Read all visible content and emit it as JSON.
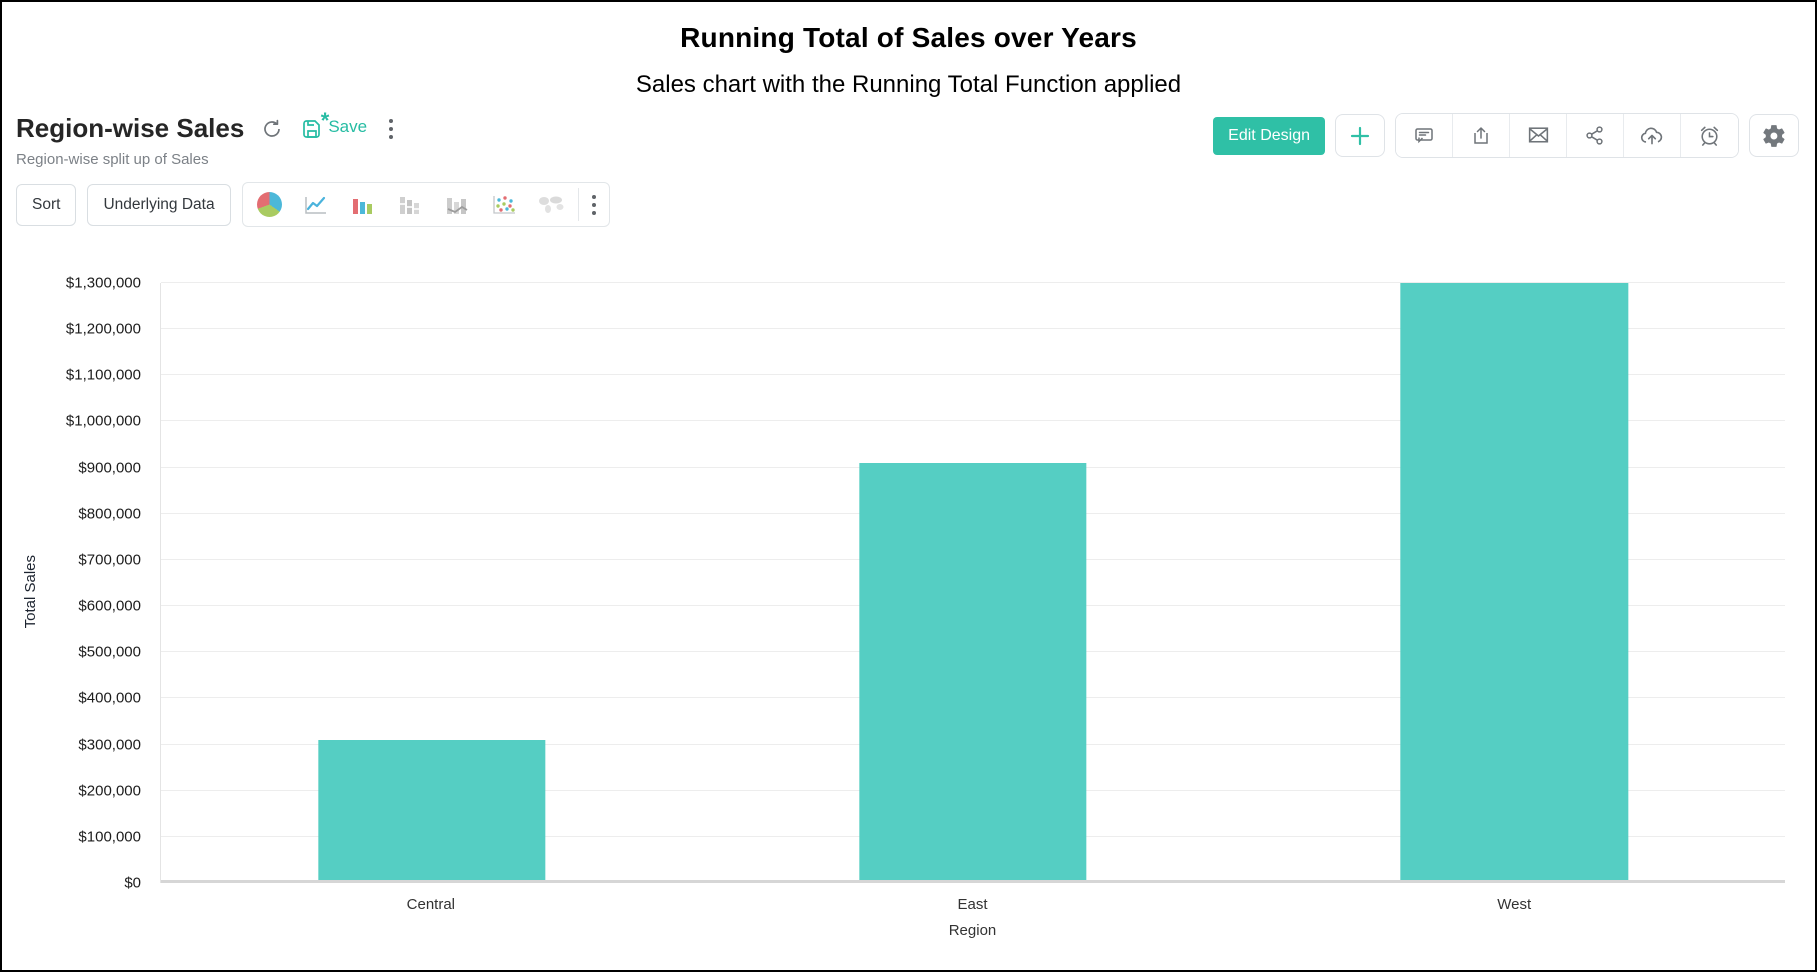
{
  "report": {
    "title": "Region-wise Sales",
    "subtitle": "Region-wise split up of Sales",
    "save_label": "Save",
    "edit_design_label": "Edit Design"
  },
  "toolbar": {
    "sort_label": "Sort",
    "underlying_data_label": "Underlying Data",
    "chart_types": [
      "pie",
      "line",
      "bar",
      "stacked-bar",
      "bar-line",
      "scatter",
      "map"
    ]
  },
  "icons": {
    "refresh": "circular-arrow",
    "save": "floppy-with-asterisk",
    "more": "vertical-three-dots",
    "plus": "plus-sign",
    "comment": "speech-bubble",
    "export": "box-up-arrow",
    "email": "envelope",
    "share": "share-nodes",
    "cloud_upload": "cloud-up-arrow",
    "alarm": "alarm-clock",
    "settings": "gear"
  },
  "colors": {
    "bar": "#55cec3",
    "accent_teal": "#2fc0a6",
    "save_teal": "#26bca3",
    "gridline": "#ededed",
    "baseline": "#d6d6d6",
    "icon_gray": "#6f7479"
  },
  "chart_data": {
    "type": "bar",
    "title": "Running Total of Sales over Years",
    "subtitle": "Sales chart with the Running Total Function applied",
    "categories": [
      "Central",
      "East",
      "West"
    ],
    "values": [
      310000,
      910000,
      1300000
    ],
    "value_labels": [
      "$310,000",
      "$910,000",
      "$1,300,000"
    ],
    "xlabel": "Region",
    "ylabel": "Total Sales",
    "ylim": [
      0,
      1300000
    ],
    "ytick_step": 100000,
    "ytick_labels": [
      "$0",
      "$100,000",
      "$200,000",
      "$300,000",
      "$400,000",
      "$500,000",
      "$600,000",
      "$700,000",
      "$800,000",
      "$900,000",
      "$1,000,000",
      "$1,100,000",
      "$1,200,000",
      "$1,300,000"
    ],
    "grid": true,
    "legend": "none",
    "bar_color": "#55cec3"
  }
}
